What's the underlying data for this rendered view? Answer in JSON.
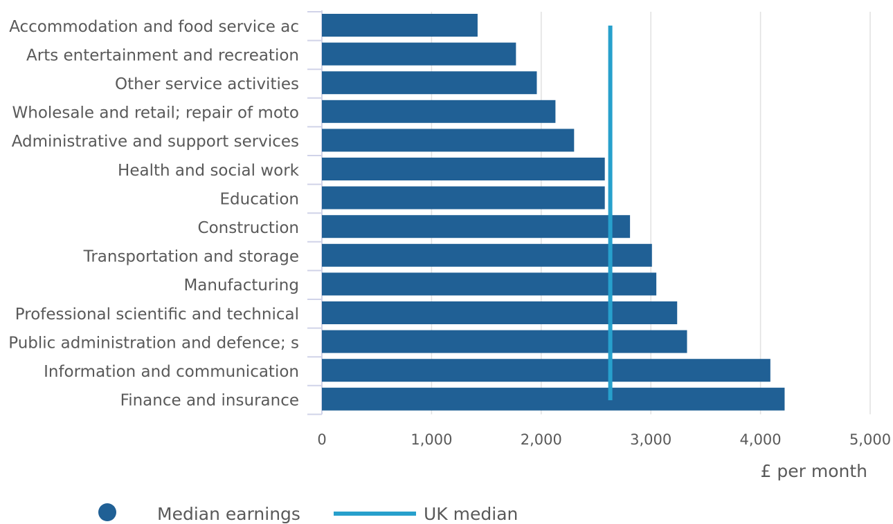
{
  "chart_data": {
    "type": "bar",
    "orientation": "horizontal",
    "categories": [
      "Accommodation and food service ac",
      "Arts entertainment and recreation",
      "Other service activities",
      "Wholesale and retail; repair of moto",
      "Administrative and support services",
      "Health and social work",
      "Education",
      "Construction",
      "Transportation and storage",
      "Manufacturing",
      "Professional scientific and technical",
      "Public administration and defence; s",
      "Information and communication",
      "Finance and insurance"
    ],
    "series": [
      {
        "name": "Median earnings",
        "color": "#206095",
        "values": [
          1420,
          1770,
          1960,
          2130,
          2300,
          2580,
          2580,
          2810,
          3010,
          3050,
          3240,
          3330,
          4090,
          4220
        ]
      }
    ],
    "reference_line": {
      "name": "UK median",
      "value": 2630,
      "color": "#27a0cc"
    },
    "xlabel": "£ per month",
    "ylabel": "",
    "xlim": [
      0,
      5000
    ],
    "x_ticks": [
      0,
      1000,
      2000,
      3000,
      4000,
      5000
    ],
    "x_tick_labels": [
      "0",
      "1,000",
      "2,000",
      "3,000",
      "4,000",
      "5,000"
    ],
    "grid": "vertical",
    "legend_position": "bottom-left",
    "legend": [
      {
        "label": "Median earnings",
        "symbol": "circle",
        "color": "#206095"
      },
      {
        "label": "UK median",
        "symbol": "line",
        "color": "#27a0cc"
      }
    ]
  }
}
